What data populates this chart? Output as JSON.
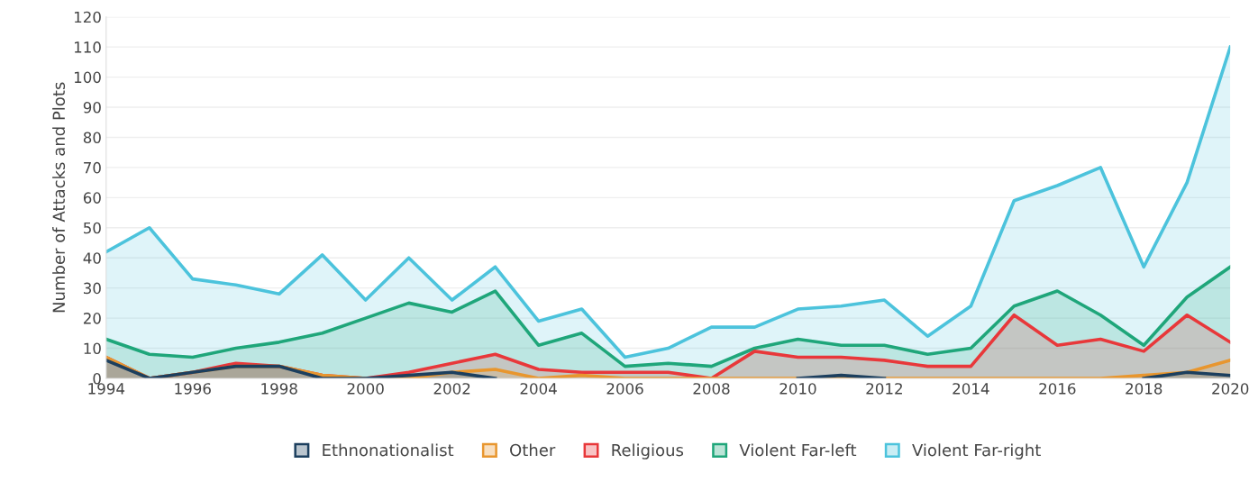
{
  "chart_data": {
    "type": "area",
    "ylabel": "Number of Attacks and Plots",
    "x": [
      1994,
      1995,
      1996,
      1997,
      1998,
      1999,
      2000,
      2001,
      2002,
      2003,
      2004,
      2005,
      2006,
      2007,
      2008,
      2009,
      2010,
      2011,
      2012,
      2013,
      2014,
      2015,
      2016,
      2017,
      2018,
      2019,
      2020
    ],
    "series": [
      {
        "name": "Ethnonationalist",
        "color": "#1c3f5e",
        "values": [
          6,
          0,
          2,
          4,
          4,
          0,
          0,
          1,
          2,
          0,
          null,
          null,
          null,
          null,
          null,
          null,
          0,
          1,
          0,
          null,
          null,
          null,
          null,
          null,
          0,
          2,
          1
        ]
      },
      {
        "name": "Other",
        "color": "#e8962e",
        "values": [
          7,
          0,
          2,
          4,
          4,
          1,
          0,
          0,
          2,
          3,
          0,
          1,
          0,
          0,
          0,
          0,
          0,
          0,
          0,
          0,
          0,
          0,
          0,
          0,
          1,
          2,
          6
        ]
      },
      {
        "name": "Religious",
        "color": "#e8383a",
        "values": [
          7,
          0,
          2,
          5,
          4,
          1,
          0,
          2,
          5,
          8,
          3,
          2,
          2,
          2,
          0,
          9,
          7,
          7,
          6,
          4,
          4,
          21,
          11,
          13,
          9,
          21,
          12
        ]
      },
      {
        "name": "Violent Far-left",
        "color": "#1fa67a",
        "values": [
          13,
          8,
          7,
          10,
          12,
          15,
          20,
          25,
          22,
          29,
          11,
          15,
          4,
          5,
          4,
          10,
          13,
          11,
          11,
          8,
          10,
          24,
          29,
          21,
          11,
          27,
          37
        ]
      },
      {
        "name": "Violent Far-right",
        "color": "#4cc3dc",
        "values": [
          42,
          50,
          33,
          31,
          28,
          41,
          26,
          40,
          26,
          37,
          19,
          23,
          7,
          10,
          17,
          17,
          23,
          24,
          26,
          14,
          24,
          59,
          64,
          70,
          37,
          65,
          110
        ]
      }
    ],
    "xlim": [
      1994,
      2020
    ],
    "xticks": [
      1994,
      1996,
      1998,
      2000,
      2002,
      2004,
      2006,
      2008,
      2010,
      2012,
      2014,
      2016,
      2018,
      2020
    ],
    "ylim": [
      0,
      120
    ],
    "yticks": [
      0,
      10,
      20,
      30,
      40,
      50,
      60,
      70,
      80,
      90,
      100,
      110,
      120
    ],
    "grid": "y",
    "legend": "bottom"
  }
}
